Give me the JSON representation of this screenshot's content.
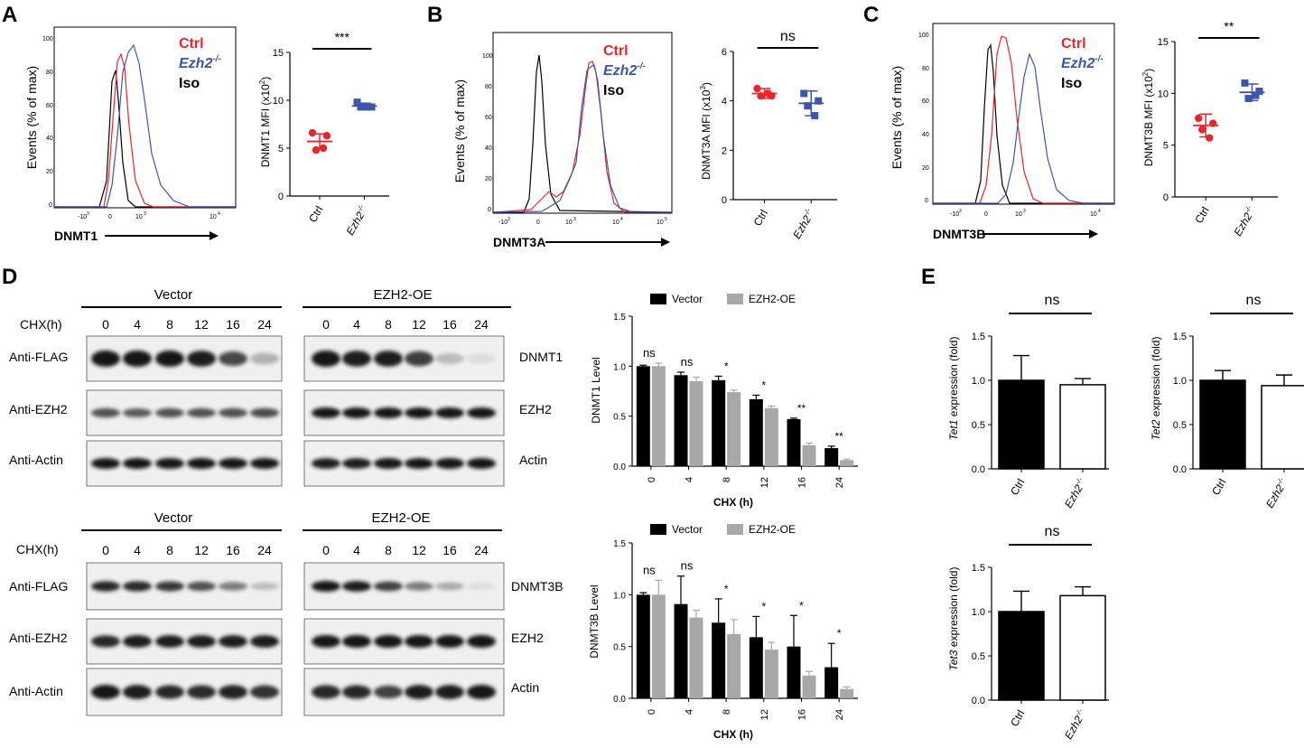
{
  "colors": {
    "ctrl": "#e8262c",
    "ko": "#3d56a8",
    "iso": "#000000",
    "vector": "#000000",
    "oe": "#a8a8a8"
  },
  "panels": {
    "A": {
      "letter": "A",
      "hist": {
        "ylabel": "Events (% of max)",
        "xlabel": "DNMT1",
        "yticks": [
          "100",
          "80",
          "60",
          "40",
          "20",
          "0"
        ],
        "xticks": [
          "-10",
          "0",
          "10",
          "10"
        ],
        "xtick_exp": [
          "3",
          "",
          "3",
          "4"
        ]
      },
      "legend": {
        "ctrl": "Ctrl",
        "ko_main": "Ezh2",
        "ko_sup": "-/-",
        "iso": "Iso"
      },
      "scatter": {
        "ylabel_main": "DNMT1 MFI (x10",
        "ylabel_sup": "2",
        "ylabel_end": ")",
        "yticks": [
          "15",
          "10",
          "5",
          "0"
        ],
        "cats": [
          "Ctrl",
          "Ezh2"
        ],
        "cat_sup": "-/-",
        "sig": "***",
        "chart_data": {
          "type": "scatter",
          "categories": [
            "Ctrl",
            "Ezh2-/-"
          ],
          "ylim": [
            0,
            15
          ],
          "points": [
            [
              6.6,
              6.3,
              4.8,
              5.0
            ],
            [
              9.8,
              9.3,
              9.3,
              9.3
            ]
          ],
          "means": [
            5.7,
            9.4
          ],
          "sd": [
            0.8,
            0.3
          ],
          "sig": "***"
        }
      }
    },
    "B": {
      "letter": "B",
      "hist": {
        "ylabel": "Events (% of max)",
        "xlabel": "DNMT3A",
        "yticks": [
          "100",
          "80",
          "60",
          "40",
          "20",
          "0"
        ],
        "xticks": [
          "-10",
          "0",
          "10",
          "10",
          "10"
        ],
        "xtick_exp": [
          "3",
          "",
          "3",
          "4",
          "5"
        ]
      },
      "legend": {
        "ctrl": "Ctrl",
        "ko_main": "Ezh2",
        "ko_sup": "-/-",
        "iso": "Iso"
      },
      "scatter": {
        "ylabel_main": "DNMT3A MFI (x10",
        "ylabel_sup": "3",
        "ylabel_end": ")",
        "yticks": [
          "6",
          "4",
          "2",
          "0"
        ],
        "cats": [
          "Ctrl",
          "Ezh2"
        ],
        "cat_sup": "-/-",
        "sig": "ns",
        "chart_data": {
          "type": "scatter",
          "categories": [
            "Ctrl",
            "Ezh2-/-"
          ],
          "ylim": [
            0,
            6
          ],
          "points": [
            [
              4.5,
              4.2,
              4.2,
              4.3
            ],
            [
              4.3,
              4.0,
              3.8,
              3.4
            ]
          ],
          "means": [
            4.3,
            3.9
          ],
          "sd": [
            0.2,
            0.5
          ],
          "sig": "ns"
        }
      }
    },
    "C": {
      "letter": "C",
      "hist": {
        "ylabel": "Events (% of max)",
        "xlabel": "DNMT3B",
        "yticks": [
          "100",
          "80",
          "60",
          "40",
          "20",
          "0"
        ],
        "xticks": [
          "-10",
          "0",
          "10",
          "10"
        ],
        "xtick_exp": [
          "3",
          "",
          "3",
          "4"
        ]
      },
      "legend": {
        "ctrl": "Ctrl",
        "ko_main": "Ezh2",
        "ko_sup": "-/-",
        "iso": "Iso"
      },
      "scatter": {
        "ylabel_main": "DNMT3B MFI (x10",
        "ylabel_sup": "2",
        "ylabel_end": ")",
        "yticks": [
          "15",
          "10",
          "5",
          "0"
        ],
        "cats": [
          "Ctrl",
          "Ezh2"
        ],
        "cat_sup": "-/-",
        "sig": "**",
        "chart_data": {
          "type": "scatter",
          "categories": [
            "Ctrl",
            "Ezh2-/-"
          ],
          "ylim": [
            0,
            15
          ],
          "points": [
            [
              7.6,
              7.1,
              6.5,
              5.7
            ],
            [
              11.0,
              10.2,
              9.5,
              9.8
            ]
          ],
          "means": [
            6.9,
            10.1
          ],
          "sd": [
            1.1,
            0.8
          ],
          "sig": "**"
        }
      }
    },
    "D": {
      "letter": "D",
      "blot1": {
        "left_title": "Vector",
        "right_title": "EZH2-OE",
        "chx": "CHX(h)",
        "times": [
          "0",
          "4",
          "8",
          "12",
          "16",
          "24"
        ],
        "rows": [
          "Anti-FLAG",
          "Anti-EZH2",
          "Anti-Actin"
        ],
        "right_labels": [
          "DNMT1",
          "EZH2",
          "Actin"
        ]
      },
      "blot2": {
        "left_title": "Vector",
        "right_title": "EZH2-OE",
        "chx": "CHX(h)",
        "times": [
          "0",
          "4",
          "8",
          "12",
          "16",
          "24"
        ],
        "rows": [
          "Anti-FLAG",
          "Anti-EZH2",
          "Anti-Actin"
        ],
        "right_labels": [
          "DNMT3B",
          "EZH2",
          "Actin"
        ]
      },
      "bar1": {
        "legend": [
          "Vector",
          "EZH2-OE"
        ],
        "ylabel": "DNMT1 Level",
        "xlabel": "CHX (h)",
        "yticks": [
          "1.5",
          "1.0",
          "0.5",
          "0.0"
        ],
        "chart_data": {
          "type": "bar",
          "categories": [
            "0",
            "4",
            "8",
            "12",
            "16",
            "24"
          ],
          "ylim": [
            0,
            1.5
          ],
          "series": [
            {
              "name": "Vector",
              "values": [
                1.0,
                0.91,
                0.86,
                0.67,
                0.47,
                0.18
              ],
              "err": [
                0.01,
                0.03,
                0.04,
                0.04,
                0.01,
                0.02
              ]
            },
            {
              "name": "EZH2-OE",
              "values": [
                1.0,
                0.85,
                0.74,
                0.58,
                0.21,
                0.06
              ],
              "err": [
                0.03,
                0.04,
                0.02,
                0.02,
                0.02,
                0.01
              ]
            }
          ],
          "sig": [
            "ns",
            "ns",
            "*",
            "*",
            "**",
            "**"
          ]
        }
      },
      "bar2": {
        "legend": [
          "Vector",
          "EZH2-OE"
        ],
        "ylabel": "DNMT3B Level",
        "xlabel": "CHX (h)",
        "yticks": [
          "1.5",
          "1.0",
          "0.5",
          "0.0"
        ],
        "chart_data": {
          "type": "bar",
          "categories": [
            "0",
            "4",
            "8",
            "12",
            "16",
            "24"
          ],
          "ylim": [
            0,
            1.5
          ],
          "series": [
            {
              "name": "Vector",
              "values": [
                1.0,
                0.91,
                0.73,
                0.59,
                0.5,
                0.3
              ],
              "err": [
                0.02,
                0.27,
                0.23,
                0.2,
                0.3,
                0.23
              ]
            },
            {
              "name": "EZH2-OE",
              "values": [
                1.0,
                0.78,
                0.62,
                0.47,
                0.22,
                0.09
              ],
              "err": [
                0.14,
                0.07,
                0.14,
                0.07,
                0.04,
                0.02
              ]
            }
          ],
          "sig": [
            "ns",
            "ns",
            "*",
            "*",
            "*",
            "*"
          ]
        }
      }
    },
    "E": {
      "letter": "E",
      "tet1": {
        "ylabel_gene": "Tet1",
        "ylabel_rest": " expression (fold)",
        "yticks": [
          "1.5",
          "1.0",
          "0.5",
          "0.0"
        ],
        "cats": [
          "Ctrl",
          "Ezh2"
        ],
        "cat_sup": "-/-",
        "sig": "ns",
        "chart_data": {
          "type": "bar",
          "categories": [
            "Ctrl",
            "Ezh2-/-"
          ],
          "ylim": [
            0,
            1.5
          ],
          "values": [
            1.0,
            0.95
          ],
          "err": [
            0.28,
            0.07
          ],
          "sig": "ns"
        }
      },
      "tet2": {
        "ylabel_gene": "Tet2",
        "ylabel_rest": " expression (fold)",
        "yticks": [
          "1.5",
          "1.0",
          "0.5",
          "0.0"
        ],
        "cats": [
          "Ctrl",
          "Ezh2"
        ],
        "cat_sup": "-/-",
        "sig": "ns",
        "chart_data": {
          "type": "bar",
          "categories": [
            "Ctrl",
            "Ezh2-/-"
          ],
          "ylim": [
            0,
            1.5
          ],
          "values": [
            1.0,
            0.94
          ],
          "err": [
            0.11,
            0.12
          ],
          "sig": "ns"
        }
      },
      "tet3": {
        "ylabel_gene": "Tet3",
        "ylabel_rest": " expression (fold)",
        "yticks": [
          "1.5",
          "1.0",
          "0.5",
          "0.0"
        ],
        "cats": [
          "Ctrl",
          "Ezh2"
        ],
        "cat_sup": "-/-",
        "sig": "ns",
        "chart_data": {
          "type": "bar",
          "categories": [
            "Ctrl",
            "Ezh2-/-"
          ],
          "ylim": [
            0,
            1.5
          ],
          "values": [
            1.0,
            1.18
          ],
          "err": [
            0.23,
            0.1
          ],
          "sig": "ns"
        }
      }
    }
  }
}
